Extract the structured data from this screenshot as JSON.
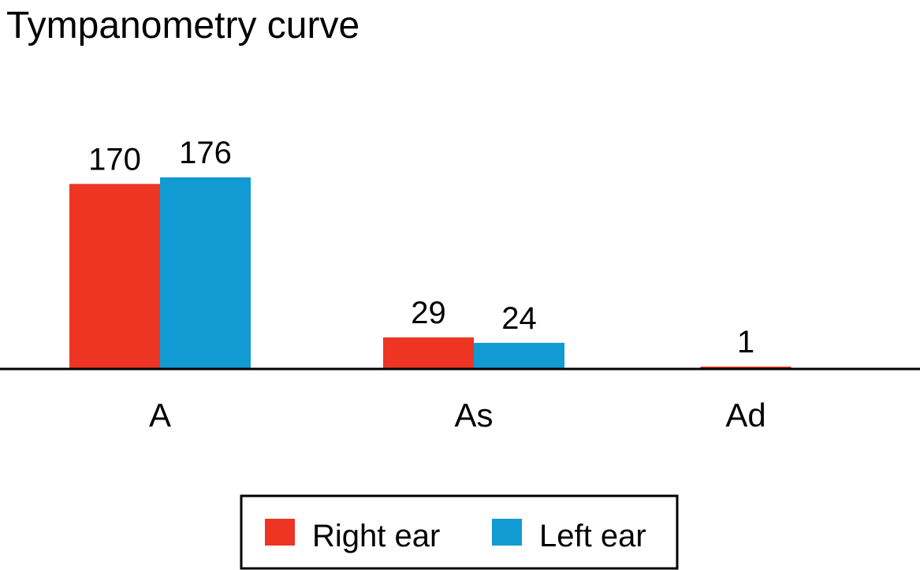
{
  "chart_data": {
    "type": "bar",
    "title": "Tympanometry curve",
    "xlabel": "",
    "ylabel": "",
    "categories": [
      "A",
      "As",
      "Ad"
    ],
    "series": [
      {
        "name": "Right ear",
        "color": "#ee3524",
        "values": [
          170,
          29,
          1
        ]
      },
      {
        "name": "Left ear",
        "color": "#129ad2",
        "values": [
          176,
          24,
          null
        ]
      }
    ],
    "ylim": [
      0,
      176
    ],
    "grid": false,
    "legend_position": "bottom"
  }
}
